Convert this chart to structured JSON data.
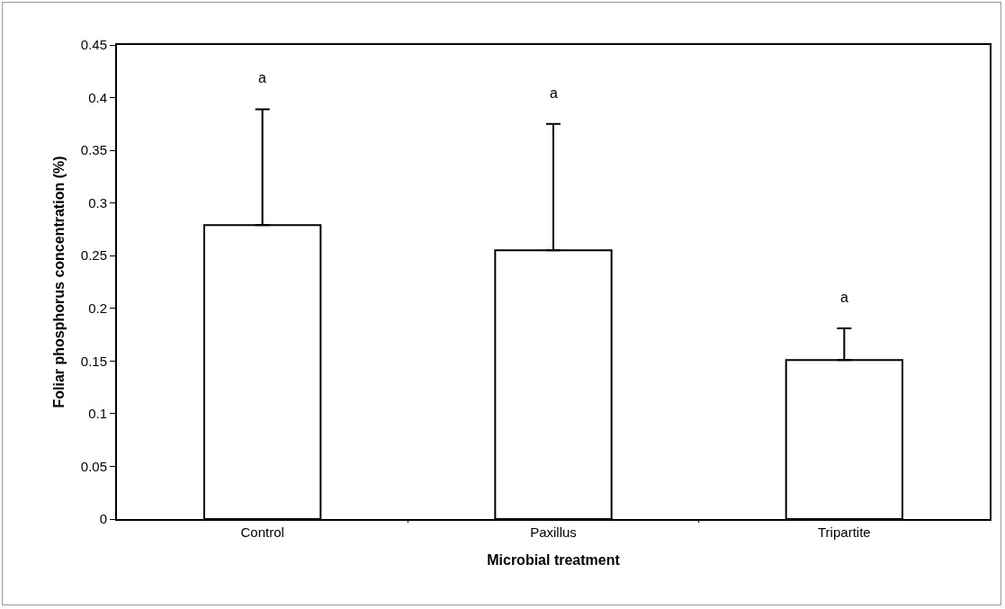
{
  "chart_data": {
    "type": "bar",
    "xlabel": "Microbial treatment",
    "ylabel": "Foliar phosphorus concentration (%)",
    "categories": [
      "Control",
      "Paxillus",
      "Tripartite"
    ],
    "values": [
      0.279,
      0.255,
      0.151
    ],
    "color": "#ffffff",
    "errors": [
      [
        0.279,
        0.389
      ],
      [
        0.255,
        0.375
      ],
      [
        0.151,
        0.181
      ]
    ],
    "ylim": [
      0,
      0.45
    ],
    "yticks": [
      0,
      0.05,
      0.1,
      0.15,
      0.2,
      0.25,
      0.3,
      0.35,
      0.4,
      0.45
    ],
    "grid": false,
    "annotations": [
      "a",
      "a",
      "a"
    ]
  }
}
